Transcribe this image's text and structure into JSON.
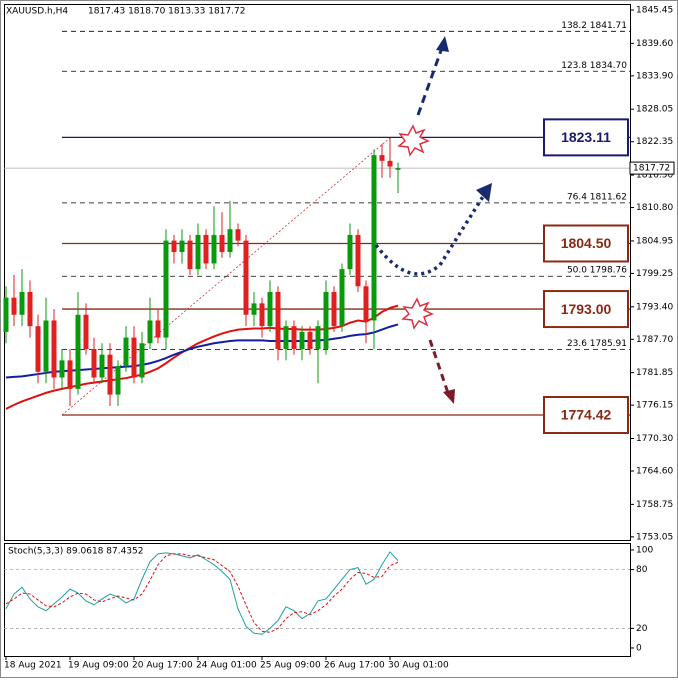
{
  "chart_data": {
    "type": "candlestick",
    "title": "XAUUSD.h,H4",
    "header_values": "1817.43 1818.70 1813.33 1817.72",
    "categories": [
      "18 Aug 2021",
      null,
      null,
      null,
      null,
      null,
      null,
      null,
      "19 Aug 09:00",
      null,
      null,
      null,
      null,
      null,
      null,
      null,
      "20 Aug 17:00",
      null,
      null,
      null,
      null,
      null,
      null,
      null,
      "24 Aug 01:00",
      null,
      null,
      null,
      null,
      null,
      null,
      null,
      "25 Aug 09:00",
      null,
      null,
      null,
      null,
      null,
      null,
      null,
      "26 Aug 17:00",
      null,
      null,
      null,
      null,
      null,
      null,
      null,
      "30 Aug 01:00",
      null
    ],
    "open": [
      1789,
      1795,
      1792,
      1796,
      1790,
      1782,
      1791,
      1781,
      1784,
      1779,
      1792,
      1786,
      1781,
      1785,
      1778,
      1783,
      1788,
      1781,
      1787,
      1791,
      1788,
      1805,
      1803,
      1805,
      1800,
      1806,
      1801,
      1806,
      1803,
      1807,
      1805,
      1792,
      1794,
      1790,
      1796,
      1786,
      1790,
      1786,
      1789,
      1786,
      1786,
      1796,
      1790,
      1800,
      1806,
      1797,
      1791,
      1820,
      1819,
      1817.43
    ],
    "high": [
      1797,
      1799,
      1800,
      1798,
      1792,
      1795,
      1793,
      1786,
      1786,
      1796,
      1794,
      1788,
      1787,
      1787,
      1784,
      1790,
      1790,
      1789,
      1795,
      1793,
      1807,
      1806,
      1807,
      1806,
      1808,
      1807,
      1811,
      1810,
      1812,
      1808,
      1806,
      1796,
      1795,
      1798,
      1797,
      1791,
      1791,
      1790,
      1790,
      1791,
      1798,
      1797,
      1801,
      1808,
      1807,
      1798,
      1821,
      1822,
      1823,
      1818.7
    ],
    "low": [
      1787,
      1790,
      1790,
      1788,
      1780,
      1780,
      1779,
      1779,
      1776,
      1778,
      1785,
      1780,
      1780,
      1776,
      1776,
      1782,
      1780,
      1780,
      1786,
      1787,
      1786,
      1801,
      1801,
      1799,
      1799,
      1800,
      1800,
      1802,
      1802,
      1804,
      1790,
      1790,
      1788,
      1789,
      1784,
      1784,
      1785,
      1784,
      1785,
      1780,
      1785,
      1789,
      1789,
      1799,
      1796,
      1787,
      1786,
      1816,
      1816,
      1813.33
    ],
    "close": [
      1795,
      1792,
      1796,
      1790,
      1782,
      1791,
      1781,
      1784,
      1779,
      1792,
      1786,
      1781,
      1785,
      1778,
      1783,
      1788,
      1781,
      1787,
      1791,
      1788,
      1805,
      1803,
      1805,
      1800,
      1806,
      1801,
      1806,
      1803,
      1807,
      1805,
      1792,
      1794,
      1790,
      1796,
      1786,
      1790,
      1786,
      1789,
      1786,
      1790,
      1796,
      1790,
      1800,
      1806,
      1797,
      1791,
      1820,
      1819,
      1818,
      1817.72
    ],
    "up_color": "#0a990a",
    "down_color": "#e0201e",
    "series": [
      {
        "color": "#e01010",
        "values": [
          1775.5,
          1776.2,
          1776.8,
          1777.3,
          1777.8,
          1778.3,
          1778.7,
          1779.0,
          1779.3,
          1779.6,
          1779.9,
          1780.1,
          1780.3,
          1780.5,
          1780.7,
          1780.9,
          1781.2,
          1781.5,
          1782.0,
          1782.6,
          1783.5,
          1784.5,
          1785.4,
          1786.2,
          1787.0,
          1787.6,
          1788.2,
          1788.7,
          1789.1,
          1789.4,
          1789.5,
          1789.6,
          1789.6,
          1789.7,
          1789.6,
          1789.5,
          1789.5,
          1789.4,
          1789.4,
          1789.4,
          1789.5,
          1789.7,
          1790.0,
          1790.6,
          1791.0,
          1790.8,
          1791.5,
          1792.5,
          1793.2,
          1793.6
        ]
      },
      {
        "color": "#1020a0",
        "values": [
          1781.0,
          1781.1,
          1781.2,
          1781.4,
          1781.6,
          1781.8,
          1782.0,
          1782.1,
          1782.2,
          1782.3,
          1782.4,
          1782.5,
          1782.6,
          1782.7,
          1782.8,
          1782.9,
          1783.0,
          1783.2,
          1783.5,
          1783.9,
          1784.4,
          1785.0,
          1785.5,
          1786.0,
          1786.4,
          1786.7,
          1787.0,
          1787.2,
          1787.4,
          1787.5,
          1787.5,
          1787.5,
          1787.5,
          1787.4,
          1787.4,
          1787.4,
          1787.4,
          1787.4,
          1787.4,
          1787.5,
          1787.6,
          1787.8,
          1788.0,
          1788.3,
          1788.5,
          1788.6,
          1788.9,
          1789.4,
          1789.9,
          1790.3
        ]
      }
    ],
    "ylim": [
      1752.5,
      1846.5
    ],
    "yticks": [
      {
        "value": 1845.45,
        "label": "1845.45"
      },
      {
        "value": 1839.6,
        "label": "1839.60"
      },
      {
        "value": 1833.9,
        "label": "1833.90"
      },
      {
        "value": 1828.05,
        "label": "1828.05"
      },
      {
        "value": 1822.35,
        "label": "1822.35"
      },
      {
        "value": 1816.5,
        "label": "1816.50"
      },
      {
        "value": 1810.8,
        "label": "1810.80"
      },
      {
        "value": 1804.95,
        "label": "1804.95"
      },
      {
        "value": 1799.25,
        "label": "1799.25"
      },
      {
        "value": 1793.4,
        "label": "1793.40"
      },
      {
        "value": 1787.7,
        "label": "1787.70"
      },
      {
        "value": 1781.85,
        "label": "1781.85"
      },
      {
        "value": 1776.15,
        "label": "1776.15"
      },
      {
        "value": 1770.3,
        "label": "1770.30"
      },
      {
        "value": 1764.6,
        "label": "1764.60"
      },
      {
        "value": 1758.75,
        "label": "1758.75"
      },
      {
        "value": 1753.05,
        "label": "1753.05"
      }
    ],
    "current_price": 1817.72,
    "fib_levels": [
      {
        "ratio": "138.2",
        "value": 1841.71
      },
      {
        "ratio": "123.8",
        "value": 1834.7,
        "label": "1834.70"
      },
      {
        "ratio": "76.4",
        "value": 1811.62
      },
      {
        "ratio": "50.0",
        "value": 1798.76
      },
      {
        "ratio": "23.6",
        "value": 1785.91
      }
    ],
    "levels": [
      {
        "value": 1823.11,
        "color": "#1a1a6e"
      },
      {
        "value": 1804.5,
        "label": "1804.50",
        "color": "#8b2a14"
      },
      {
        "value": 1793.0,
        "label": "1793.00",
        "color": "#8b2a14"
      },
      {
        "value": 1774.42,
        "color": "#8b2a14"
      }
    ],
    "stoch": {
      "title": "Stoch(5,3,3) 89.0618 87.4352",
      "ylim": [
        -8.2,
        107.1
      ],
      "yticks": [
        100,
        80,
        20,
        0
      ],
      "levels": [
        80,
        20
      ],
      "series": [
        {
          "color": "#20a0a0",
          "values": [
            40,
            55,
            62,
            50,
            42,
            38,
            45,
            52,
            60,
            56,
            48,
            44,
            50,
            55,
            52,
            46,
            50,
            70,
            88,
            96,
            97,
            96,
            94,
            92,
            95,
            90,
            85,
            78,
            70,
            40,
            22,
            15,
            14,
            20,
            28,
            42,
            38,
            30,
            35,
            48,
            50,
            60,
            70,
            80,
            82,
            65,
            70,
            85,
            98,
            89.0618
          ]
        },
        {
          "color": "#e01010",
          "dash": true,
          "values": [
            45,
            50,
            56,
            55,
            49,
            43,
            42,
            46,
            52,
            56,
            55,
            49,
            47,
            50,
            53,
            51,
            49,
            55,
            69,
            85,
            94,
            96,
            96,
            94,
            94,
            92,
            90,
            84,
            78,
            63,
            44,
            26,
            17,
            16,
            20,
            30,
            36,
            37,
            34,
            38,
            44,
            53,
            60,
            70,
            77,
            76,
            72,
            73,
            84,
            87.4352
          ]
        }
      ]
    }
  }
}
